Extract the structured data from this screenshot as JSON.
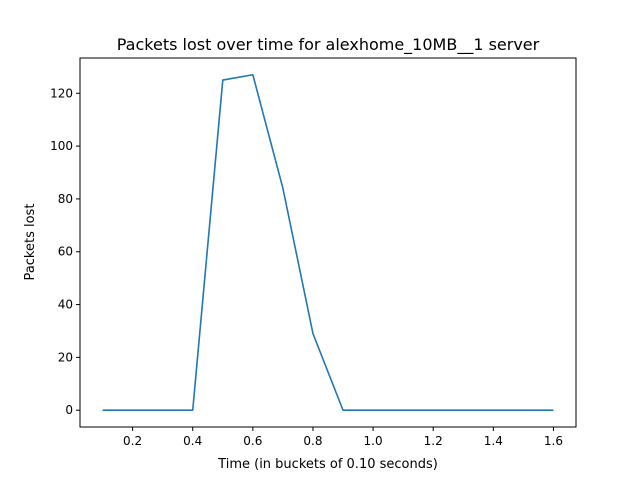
{
  "chart_data": {
    "type": "line",
    "title": "Packets lost over time for alexhome_10MB__1 server",
    "xlabel": "Time (in buckets of 0.10 seconds)",
    "ylabel": "Packets lost",
    "xlim": [
      0.025,
      1.675
    ],
    "ylim": [
      -6.35,
      133.35
    ],
    "x_ticks": [
      0.2,
      0.4,
      0.6,
      0.8,
      1.0,
      1.2,
      1.4,
      1.6
    ],
    "x_tick_labels": [
      "0.2",
      "0.4",
      "0.6",
      "0.8",
      "1.0",
      "1.2",
      "1.4",
      "1.6"
    ],
    "y_ticks": [
      0,
      20,
      40,
      60,
      80,
      100,
      120
    ],
    "y_tick_labels": [
      "0",
      "20",
      "40",
      "60",
      "80",
      "100",
      "120"
    ],
    "grid": false,
    "series": [
      {
        "color": "#1f77b4",
        "x": [
          0.1,
          0.2,
          0.3,
          0.4,
          0.5,
          0.6,
          0.7,
          0.8,
          0.9,
          1.0,
          1.1,
          1.2,
          1.3,
          1.4,
          1.5,
          1.6
        ],
        "y": [
          0,
          0,
          0,
          0,
          125,
          127,
          84,
          29,
          0,
          0,
          0,
          0,
          0,
          0,
          0,
          0
        ]
      }
    ]
  }
}
